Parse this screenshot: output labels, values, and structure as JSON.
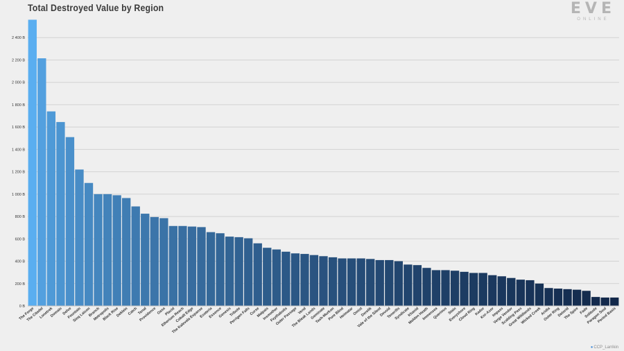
{
  "header": {
    "title": "Total Destroyed Value by Region",
    "logo_main": "EVE",
    "logo_sub": "ONLINE"
  },
  "footer": {
    "credit": "CCP_Larrikin",
    "credit_icon": "twitter-bird-icon"
  },
  "colors": {
    "gradient_start": "#5aaef0",
    "gradient_end": "#12284a",
    "grid": "#d2d2d2",
    "axis_text": "#333333"
  },
  "chart_data": {
    "type": "bar",
    "title": "Total Destroyed Value by Region",
    "xlabel": "",
    "ylabel": "",
    "ylim": [
      0,
      2600
    ],
    "yticks": [
      0,
      200,
      400,
      600,
      800,
      1000,
      1200,
      1400,
      1600,
      1800,
      2000,
      2200,
      2400
    ],
    "ytick_labels": [
      "0 B",
      "200 B",
      "400 B",
      "600 B",
      "800 B",
      "1 000 B",
      "1 200 B",
      "1 400 B",
      "1 600 B",
      "1 800 B",
      "2 000 B",
      "2 200 B",
      "2 400 B"
    ],
    "grid": true,
    "categories": [
      "The Forge",
      "The Citadel",
      "Lonetrek",
      "Domain",
      "Delve",
      "Fountain",
      "Sinq Laison",
      "Branch",
      "Metropolis",
      "Black Rise",
      "Deklein",
      "Catch",
      "Tenal",
      "Providence",
      "Oasa",
      "Placid",
      "Etherium Reach",
      "Cobalt Edge",
      "The Kalevala Expanse",
      "Esoteria",
      "Essence",
      "Genesis",
      "Tribute",
      "Perrigen Falls",
      "Curse",
      "Malpais",
      "Insmother",
      "Feythabolis",
      "Outer Passage",
      "Vend",
      "The Bleak Lands",
      "Geminate",
      "Tash-Murkon",
      "Pure Blind",
      "Heimatar",
      "Omist",
      "Derelik",
      "Vale of the Silent",
      "Devoid",
      "Tenerifis",
      "Syndicate",
      "Khanid",
      "Molden Heath",
      "Immensea",
      "Querious",
      "Stain",
      "Everyshore",
      "Cloud Ring",
      "Kador",
      "Kor-Azor",
      "Impass",
      "Verge Vendor",
      "Scalding Pass",
      "Great Wildlands",
      "Wicked Creek",
      "Aridia",
      "Outer Ring",
      "Detorid",
      "The Spire",
      "Fade",
      "Solitude",
      "Paragon Soul",
      "Period Basis"
    ],
    "values": [
      2560,
      2215,
      1740,
      1645,
      1510,
      1220,
      1100,
      1000,
      1000,
      990,
      965,
      890,
      825,
      795,
      785,
      715,
      715,
      710,
      705,
      660,
      650,
      620,
      615,
      605,
      560,
      520,
      505,
      485,
      470,
      465,
      455,
      445,
      435,
      425,
      425,
      425,
      420,
      410,
      410,
      400,
      370,
      365,
      340,
      320,
      320,
      315,
      305,
      295,
      295,
      275,
      265,
      250,
      235,
      230,
      200,
      160,
      155,
      150,
      145,
      135,
      80,
      75,
      75
    ]
  }
}
